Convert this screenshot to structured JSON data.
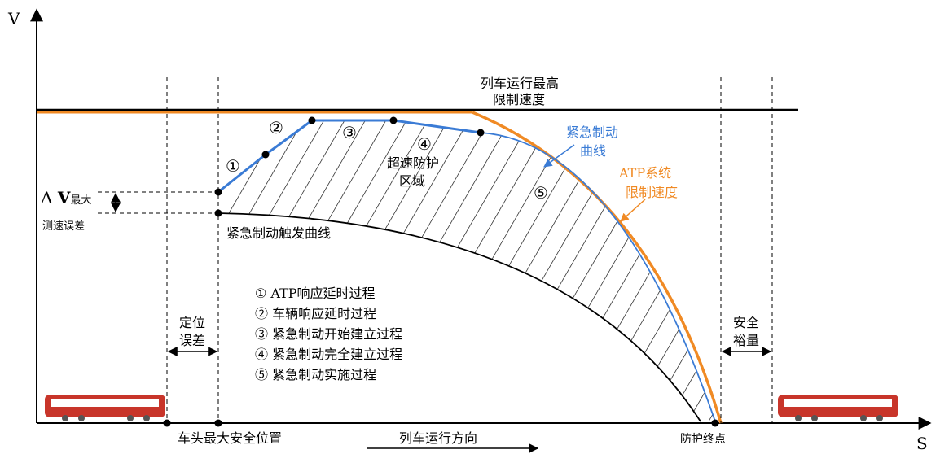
{
  "axes": {
    "y": "V",
    "x": "S"
  },
  "max_speed": [
    "列车运行最高",
    "限制速度"
  ],
  "steps": [
    "①",
    "②",
    "③",
    "④",
    "⑤"
  ],
  "overspeed_zone": [
    "超速防护",
    "区域"
  ],
  "emergency_curve": [
    "紧急制动",
    "曲线"
  ],
  "atp_limit": [
    "ATP系统",
    "限制速度"
  ],
  "speed_error": {
    "symbol": "Δ",
    "v": "V",
    "sub": "最大",
    "caption": "测速误差"
  },
  "trigger_curve": "紧急制动触发曲线",
  "legend": [
    "① ATP响应延时过程",
    "② 车辆响应延时过程",
    "③ 紧急制动开始建立过程",
    "④ 紧急制动完全建立过程",
    "⑤ 紧急制动实施过程"
  ],
  "position_error": [
    "定位",
    "误差"
  ],
  "safety_margin": [
    "安全",
    "裕量"
  ],
  "bottom": {
    "head_position": "车头最大安全位置",
    "direction": "列车运行方向",
    "end_point": "防护终点"
  }
}
